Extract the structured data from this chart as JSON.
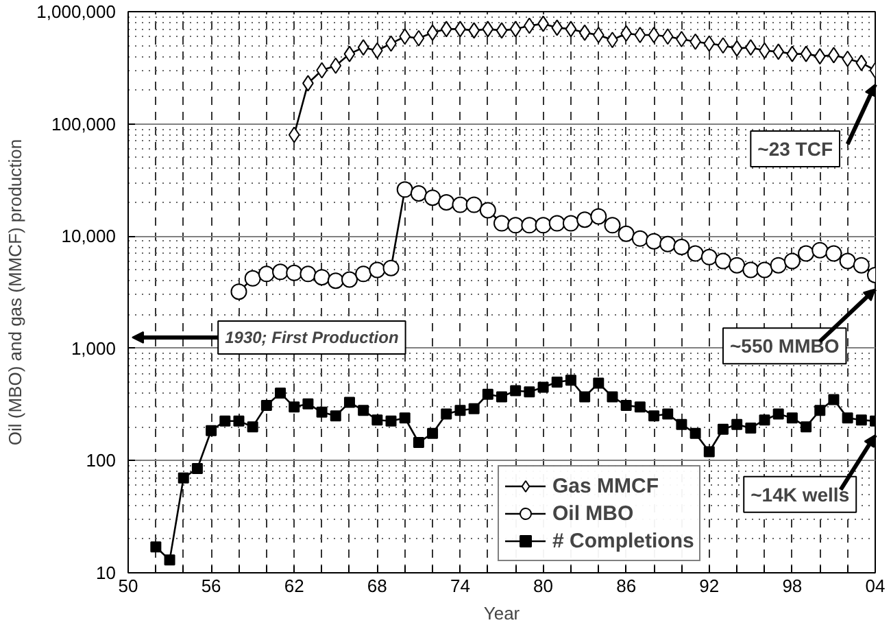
{
  "chart_data": {
    "type": "line",
    "xlabel": "Year",
    "ylabel": "Oil (MBO) and gas (MMCF) production",
    "log": true,
    "grid": true,
    "legend": "bottom right",
    "xlim": [
      1950,
      2004
    ],
    "xticks": [
      {
        "value": 1950,
        "label": "50"
      },
      {
        "value": 1952,
        "label": null
      },
      {
        "value": 1954,
        "label": null
      },
      {
        "value": 1956,
        "label": "56"
      },
      {
        "value": 1958,
        "label": null
      },
      {
        "value": 1960,
        "label": null
      },
      {
        "value": 1962,
        "label": "62"
      },
      {
        "value": 1964,
        "label": null
      },
      {
        "value": 1966,
        "label": null
      },
      {
        "value": 1968,
        "label": "68"
      },
      {
        "value": 1970,
        "label": null
      },
      {
        "value": 1972,
        "label": null
      },
      {
        "value": 1974,
        "label": "74"
      },
      {
        "value": 1976,
        "label": null
      },
      {
        "value": 1978,
        "label": null
      },
      {
        "value": 1980,
        "label": "80"
      },
      {
        "value": 1982,
        "label": null
      },
      {
        "value": 1984,
        "label": null
      },
      {
        "value": 1986,
        "label": "86"
      },
      {
        "value": 1988,
        "label": null
      },
      {
        "value": 1990,
        "label": null
      },
      {
        "value": 1992,
        "label": "92"
      },
      {
        "value": 1994,
        "label": null
      },
      {
        "value": 1996,
        "label": null
      },
      {
        "value": 1998,
        "label": "98"
      },
      {
        "value": 2000,
        "label": null
      },
      {
        "value": 2002,
        "label": null
      },
      {
        "value": 2004,
        "label": "04"
      }
    ],
    "ylim": [
      10,
      1000000
    ],
    "yticks": [
      10,
      100,
      {
        "value": 1000,
        "label": "1,000"
      },
      {
        "value": 10000,
        "label": "10,000"
      },
      {
        "value": 100000,
        "label": "100,000"
      },
      {
        "value": 1000000,
        "label": "1,000,000"
      }
    ],
    "series": [
      {
        "name": "Gas MMCF",
        "color": "#000000",
        "marker": "diamond",
        "x": [
          1962,
          1963,
          1964,
          1965,
          1966,
          1967,
          1968,
          1969,
          1970,
          1971,
          1972,
          1973,
          1974,
          1975,
          1976,
          1977,
          1978,
          1979,
          1980,
          1981,
          1982,
          1983,
          1984,
          1985,
          1986,
          1987,
          1988,
          1989,
          1990,
          1991,
          1992,
          1993,
          1994,
          1995,
          1996,
          1997,
          1998,
          1999,
          2000,
          2001,
          2002,
          2003,
          2004
        ],
        "values": [
          80000,
          230000,
          300000,
          330000,
          420000,
          480000,
          450000,
          520000,
          600000,
          580000,
          650000,
          700000,
          700000,
          680000,
          700000,
          680000,
          700000,
          750000,
          780000,
          720000,
          700000,
          650000,
          620000,
          560000,
          640000,
          620000,
          620000,
          600000,
          570000,
          540000,
          520000,
          500000,
          470000,
          480000,
          450000,
          440000,
          420000,
          420000,
          400000,
          410000,
          380000,
          350000,
          300000
        ]
      },
      {
        "name": "Oil MBO",
        "color": "#000000",
        "marker": "circle",
        "x": [
          1958,
          1959,
          1960,
          1961,
          1962,
          1963,
          1964,
          1965,
          1966,
          1967,
          1968,
          1969,
          1970,
          1971,
          1972,
          1973,
          1974,
          1975,
          1976,
          1977,
          1978,
          1979,
          1980,
          1981,
          1982,
          1983,
          1984,
          1985,
          1986,
          1987,
          1988,
          1989,
          1990,
          1991,
          1992,
          1993,
          1994,
          1995,
          1996,
          1997,
          1998,
          1999,
          2000,
          2001,
          2002,
          2003,
          2004
        ],
        "values": [
          3200,
          4200,
          4600,
          4800,
          4700,
          4600,
          4300,
          4000,
          4100,
          4600,
          5000,
          5200,
          26000,
          24000,
          22000,
          20000,
          19000,
          19000,
          17000,
          13000,
          12500,
          12500,
          12500,
          13000,
          13000,
          14000,
          15000,
          12500,
          10500,
          9500,
          9000,
          8500,
          8000,
          7000,
          6500,
          6000,
          5500,
          5000,
          5000,
          5500,
          6000,
          7000,
          7500,
          7000,
          6000,
          5500,
          4500
        ]
      },
      {
        "name": "# Completions",
        "color": "#000000",
        "marker": "square",
        "x": [
          1952,
          1953,
          1954,
          1955,
          1956,
          1957,
          1958,
          1959,
          1960,
          1961,
          1962,
          1963,
          1964,
          1965,
          1966,
          1967,
          1968,
          1969,
          1970,
          1971,
          1972,
          1973,
          1974,
          1975,
          1976,
          1977,
          1978,
          1979,
          1980,
          1981,
          1982,
          1983,
          1984,
          1985,
          1986,
          1987,
          1988,
          1989,
          1990,
          1991,
          1992,
          1993,
          1994,
          1995,
          1996,
          1997,
          1998,
          1999,
          2000,
          2001,
          2002,
          2003,
          2004
        ],
        "values": [
          17,
          13,
          70,
          85,
          185,
          225,
          225,
          200,
          310,
          400,
          300,
          320,
          270,
          250,
          330,
          280,
          230,
          225,
          240,
          145,
          175,
          260,
          280,
          290,
          390,
          370,
          420,
          410,
          450,
          500,
          520,
          370,
          490,
          370,
          310,
          300,
          250,
          260,
          210,
          175,
          120,
          190,
          210,
          195,
          230,
          260,
          240,
          200,
          280,
          350,
          240,
          230,
          225
        ]
      }
    ],
    "annotations": [
      "1930; First Production",
      "~23 TCF",
      "~550 MMBO",
      "~14K wells"
    ]
  }
}
